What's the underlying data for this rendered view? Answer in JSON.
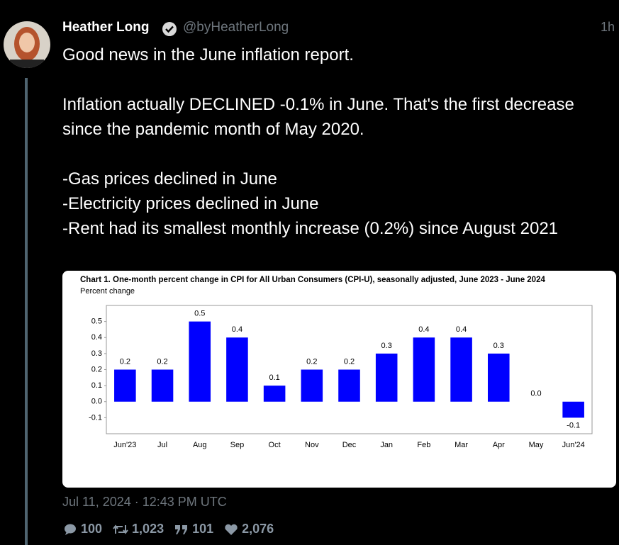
{
  "author": {
    "name": "Heather Long",
    "handle": "@byHeatherLong",
    "age": "1h"
  },
  "tweet": {
    "paragraphs": [
      "Good news in the June inflation report.",
      "Inflation actually DECLINED -0.1% in June. That's the first decrease since the pandemic month of May 2020.",
      "-Gas prices declined in June\n-Electricity prices declined in June\n-Rent had its smallest monthly increase (0.2%) since August 2021"
    ]
  },
  "chart_data": {
    "type": "bar",
    "title": "Chart 1. One-month percent change in CPI for All Urban Consumers (CPI-U), seasonally adjusted, June 2023 - June 2024",
    "y_label": "Percent change",
    "categories": [
      "Jun'23",
      "Jul",
      "Aug",
      "Sep",
      "Oct",
      "Nov",
      "Dec",
      "Jan",
      "Feb",
      "Mar",
      "Apr",
      "May",
      "Jun'24"
    ],
    "values": [
      0.2,
      0.2,
      0.5,
      0.4,
      0.1,
      0.2,
      0.2,
      0.3,
      0.4,
      0.4,
      0.3,
      0.0,
      -0.1
    ],
    "value_labels": [
      "0.2",
      "0.2",
      "0.5",
      "0.4",
      "0.1",
      "0.2",
      "0.2",
      "0.3",
      "0.4",
      "0.4",
      "0.3",
      "0.0",
      "-0.1"
    ],
    "color": "#0000ff",
    "ylim": [
      -0.2,
      0.6
    ],
    "yticks": [
      0.5,
      0.4,
      0.3,
      0.2,
      0.1,
      {
        "value": 0,
        "label": "0.0"
      },
      -0.1
    ],
    "grid": false
  },
  "timestamp": "Jul 11, 2024 · 12:43 PM UTC",
  "stats": {
    "replies": "100",
    "retweets": "1,023",
    "quotes": "101",
    "likes": "2,076"
  }
}
